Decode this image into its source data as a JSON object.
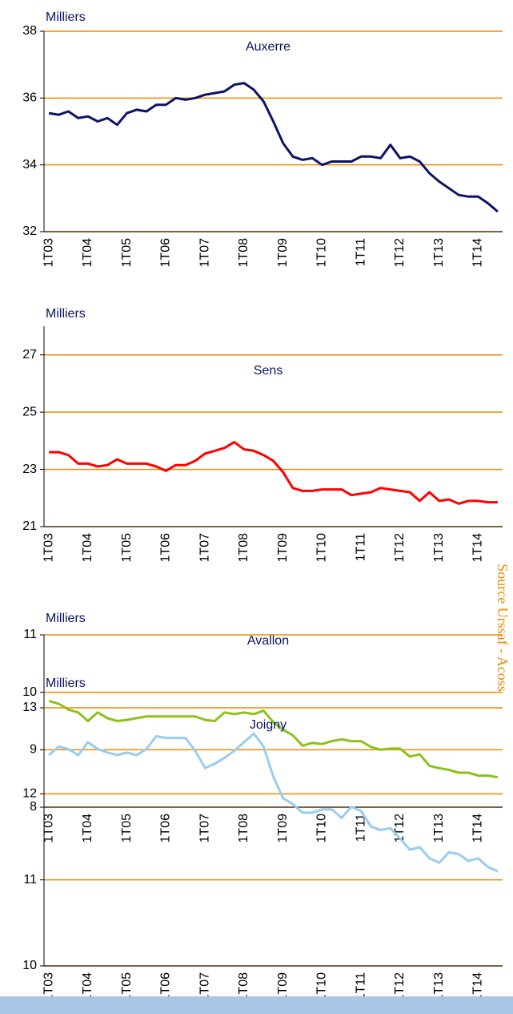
{
  "source": "Source Urssaf - Acoss",
  "chart_data": [
    {
      "type": "line",
      "title": "Auxerre",
      "y_label": "Milliers",
      "color": "#0b1464",
      "grid": true,
      "categories": [
        "1T03",
        null,
        null,
        null,
        "1T04",
        null,
        null,
        null,
        "1T05",
        null,
        null,
        null,
        "1T06",
        null,
        null,
        null,
        "1T07",
        null,
        null,
        null,
        "1T08",
        null,
        null,
        null,
        "1T09",
        null,
        null,
        null,
        "1T10",
        null,
        null,
        null,
        "1T11",
        null,
        null,
        null,
        "1T12",
        null,
        null,
        null,
        "1T13",
        null,
        null,
        null,
        "1T14",
        null,
        null
      ],
      "values": [
        35.55,
        35.5,
        35.6,
        35.4,
        35.45,
        35.3,
        35.4,
        35.2,
        35.55,
        35.65,
        35.6,
        35.8,
        35.8,
        36.0,
        35.95,
        36.0,
        36.1,
        36.15,
        36.2,
        36.4,
        36.45,
        36.25,
        35.9,
        35.3,
        34.65,
        34.25,
        34.15,
        34.2,
        34.0,
        34.1,
        34.1,
        34.1,
        34.25,
        34.25,
        34.2,
        34.6,
        34.2,
        34.25,
        34.1,
        33.75,
        33.5,
        33.3,
        33.1,
        33.05,
        33.05,
        32.85,
        32.6
      ],
      "ylim": [
        32,
        38
      ],
      "yticks": [
        32,
        34,
        36,
        38
      ]
    },
    {
      "type": "line",
      "title": "Sens",
      "y_label": "Milliers",
      "color": "#ff0000",
      "grid": true,
      "categories": [
        "1T03",
        null,
        null,
        null,
        "1T04",
        null,
        null,
        null,
        "1T05",
        null,
        null,
        null,
        "1T06",
        null,
        null,
        null,
        "1T07",
        null,
        null,
        null,
        "1T08",
        null,
        null,
        null,
        "1T09",
        null,
        null,
        null,
        "1T10",
        null,
        null,
        null,
        "1T11",
        null,
        null,
        null,
        "1T12",
        null,
        null,
        null,
        "1T13",
        null,
        null,
        null,
        "1T14",
        null,
        null
      ],
      "values": [
        23.6,
        23.6,
        23.5,
        23.2,
        23.2,
        23.1,
        23.15,
        23.35,
        23.2,
        23.2,
        23.2,
        23.1,
        22.95,
        23.15,
        23.15,
        23.3,
        23.55,
        23.65,
        23.75,
        23.95,
        23.7,
        23.65,
        23.5,
        23.3,
        22.9,
        22.35,
        22.25,
        22.25,
        22.3,
        22.3,
        22.3,
        22.1,
        22.15,
        22.2,
        22.35,
        22.3,
        22.25,
        22.2,
        21.9,
        22.2,
        21.9,
        21.95,
        21.8,
        21.9,
        21.9,
        21.85,
        21.85
      ],
      "ylim": [
        21,
        28
      ],
      "yticks": [
        21,
        23,
        25,
        27
      ]
    },
    {
      "type": "line",
      "title": "Avallon",
      "y_label": "Milliers",
      "color": "#8cc21c",
      "grid": true,
      "categories": [
        "1T03",
        null,
        null,
        null,
        "1T04",
        null,
        null,
        null,
        "1T05",
        null,
        null,
        null,
        "1T06",
        null,
        null,
        null,
        "1T07",
        null,
        null,
        null,
        "1T08",
        null,
        null,
        null,
        "1T09",
        null,
        null,
        null,
        "1T10",
        null,
        null,
        null,
        "1T11",
        null,
        null,
        null,
        "1T12",
        null,
        null,
        null,
        "1T13",
        null,
        null,
        null,
        "1T14",
        null,
        null
      ],
      "values": [
        9.85,
        9.8,
        9.7,
        9.65,
        9.5,
        9.65,
        9.55,
        9.5,
        9.52,
        9.55,
        9.58,
        9.58,
        9.58,
        9.58,
        9.58,
        9.58,
        9.52,
        9.5,
        9.65,
        9.62,
        9.65,
        9.62,
        9.68,
        9.48,
        9.35,
        9.25,
        9.07,
        9.12,
        9.1,
        9.15,
        9.18,
        9.15,
        9.15,
        9.05,
        9.0,
        9.02,
        9.02,
        8.88,
        8.92,
        8.72,
        8.68,
        8.65,
        8.6,
        8.6,
        8.55,
        8.55,
        8.52
      ],
      "ylim": [
        8,
        11
      ],
      "yticks": [
        8,
        9,
        10,
        11
      ]
    },
    {
      "type": "line",
      "title": "Joigny",
      "y_label": "Milliers",
      "color": "#99ccf0",
      "grid": true,
      "categories": [
        "1T03",
        null,
        null,
        null,
        "1T04",
        null,
        null,
        null,
        "1T05",
        null,
        null,
        null,
        "1T06",
        null,
        null,
        null,
        "1T07",
        null,
        null,
        null,
        "1T08",
        null,
        null,
        null,
        "1T09",
        null,
        null,
        null,
        "1T10",
        null,
        null,
        null,
        "1T11",
        null,
        null,
        null,
        "1T12",
        null,
        null,
        null,
        "1T13",
        null,
        null,
        null,
        "1T14",
        null,
        null
      ],
      "values": [
        12.45,
        12.55,
        12.52,
        12.45,
        12.6,
        12.52,
        12.48,
        12.45,
        12.48,
        12.45,
        12.52,
        12.67,
        12.65,
        12.65,
        12.65,
        12.5,
        12.3,
        12.35,
        12.42,
        12.5,
        12.6,
        12.7,
        12.55,
        12.2,
        11.95,
        11.88,
        11.78,
        11.78,
        11.82,
        11.82,
        11.72,
        11.85,
        11.8,
        11.62,
        11.58,
        11.6,
        11.48,
        11.35,
        11.38,
        11.25,
        11.2,
        11.32,
        11.3,
        11.22,
        11.25,
        11.15,
        11.1
      ],
      "ylim": [
        10,
        13
      ],
      "yticks": [
        10,
        11,
        12,
        13
      ]
    }
  ]
}
